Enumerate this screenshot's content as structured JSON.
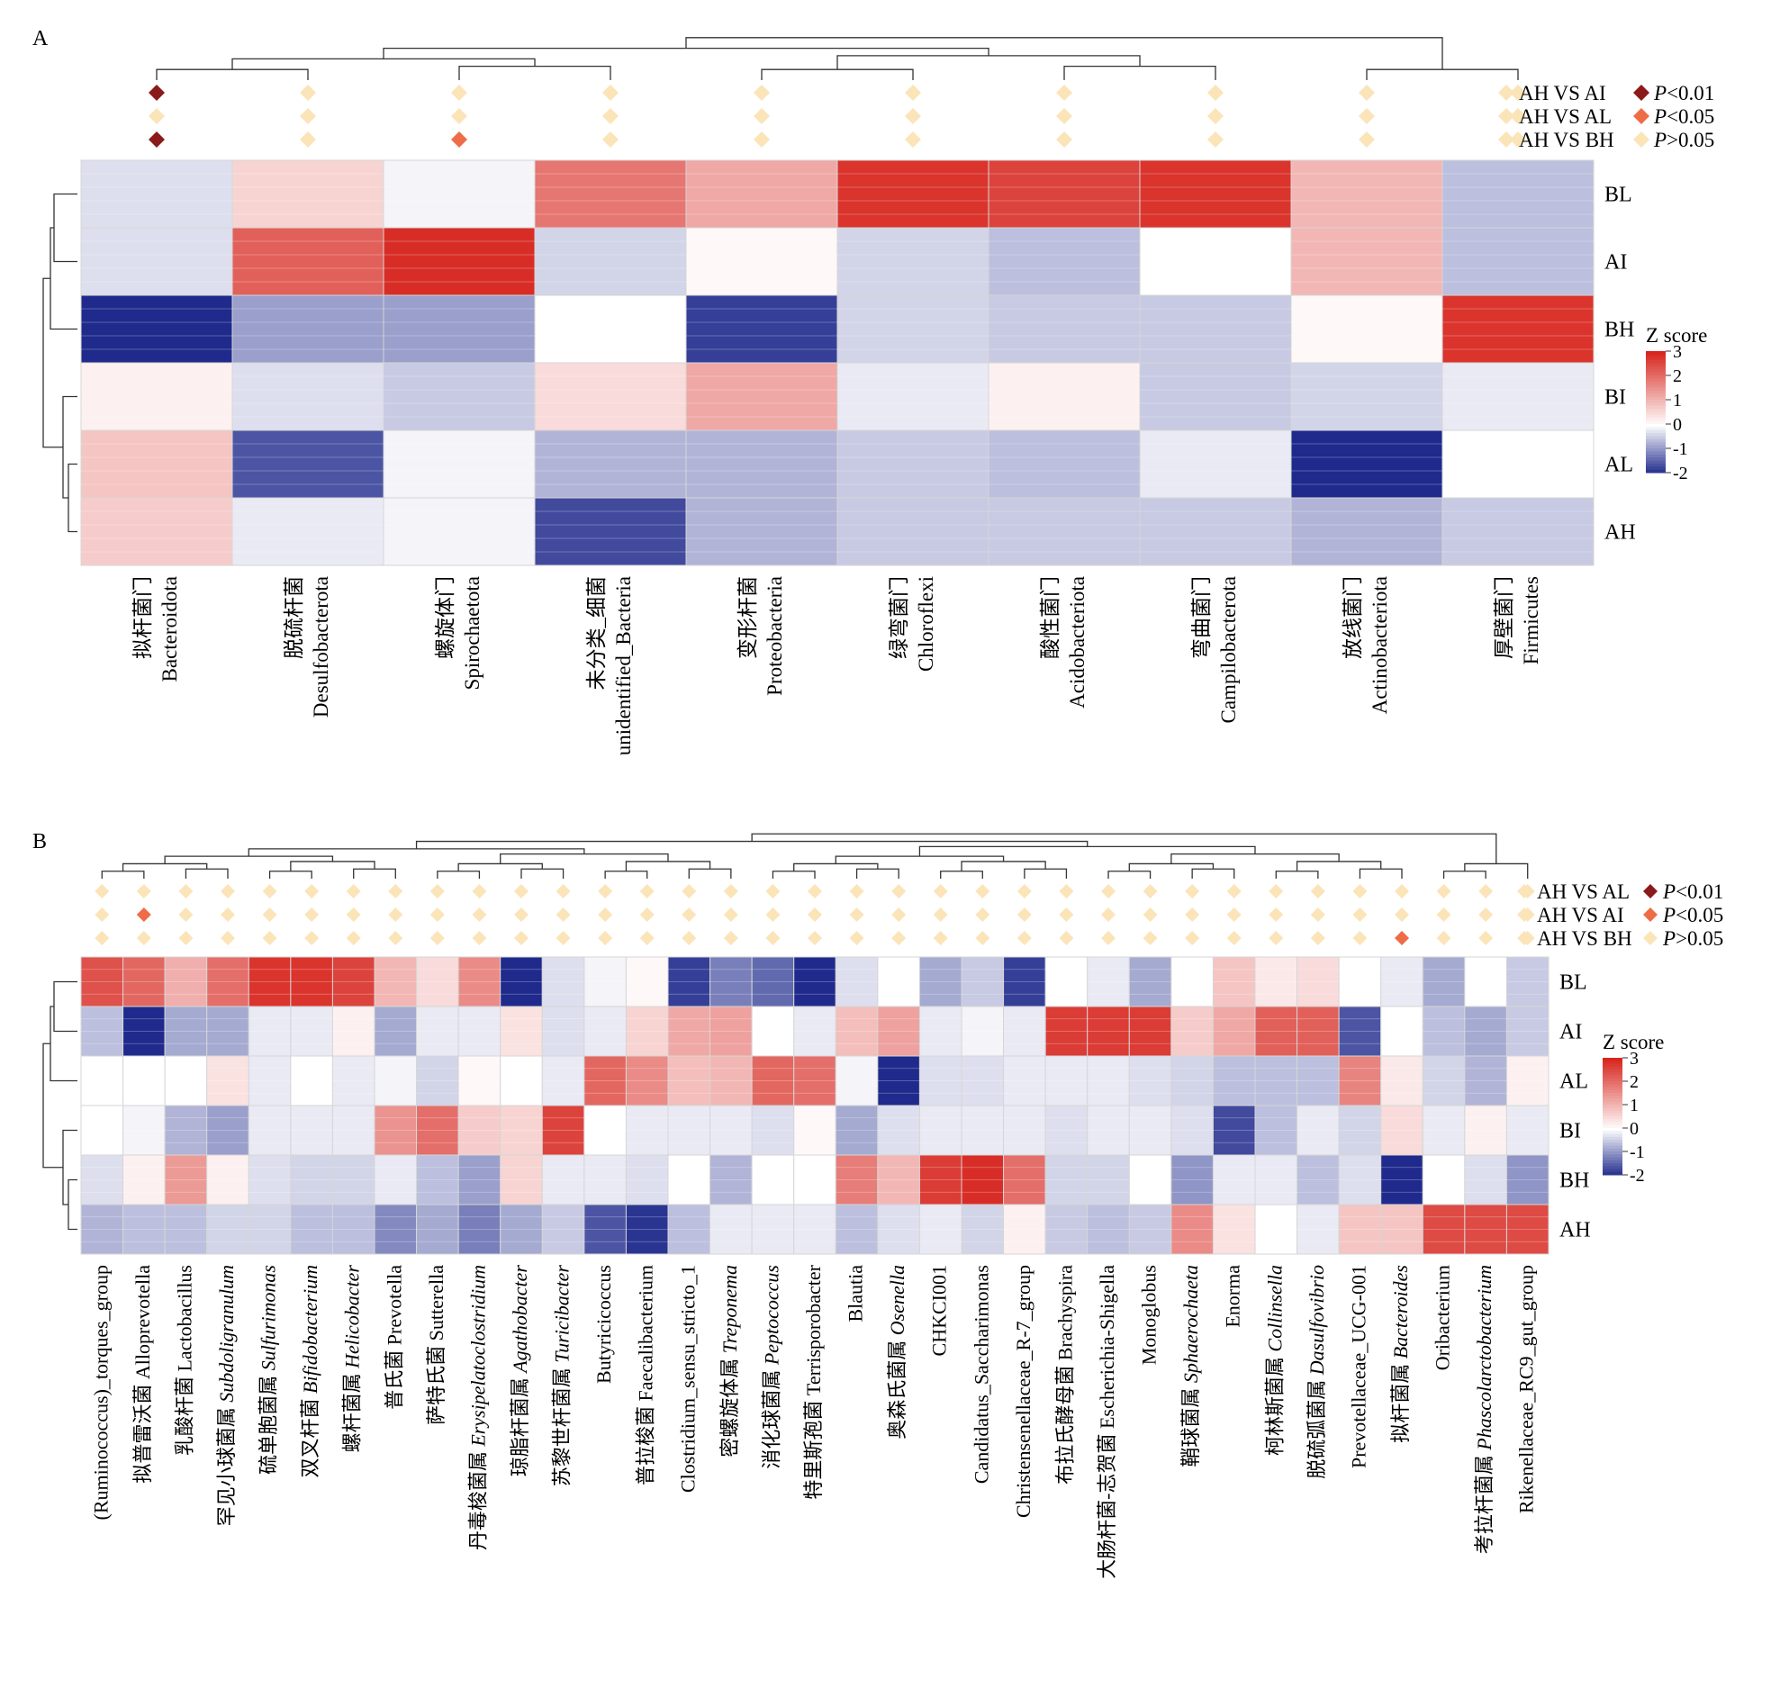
{
  "panel_letters": [
    "A",
    "B"
  ],
  "colors": {
    "low": "#1f2a8c",
    "mid": "#ffffff",
    "high": "#d7261e",
    "p001": "#8b1a1a",
    "p005": "#ee6d47",
    "pns": "#fbe4b8"
  },
  "chart_data": [
    {
      "panel": "A",
      "type": "heatmap",
      "rows": [
        "BL",
        "AI",
        "BH",
        "BI",
        "AL",
        "AH"
      ],
      "columns": [
        {
          "cn": "拟杆菌门",
          "en": "Bacteroidota"
        },
        {
          "cn": "脱硫杆菌",
          "en": "Desulfobacterota"
        },
        {
          "cn": "螺旋体门",
          "en": "Spirochaetota"
        },
        {
          "cn": "未分类_细菌",
          "en": "unidentified_Bacteria"
        },
        {
          "cn": "变形杆菌",
          "en": "Proteobacteria"
        },
        {
          "cn": "绿弯菌门",
          "en": "Chloroflexi"
        },
        {
          "cn": "酸性菌门",
          "en": "Acidobacteriota"
        },
        {
          "cn": "弯曲菌门",
          "en": "Campilobacterota"
        },
        {
          "cn": "放线菌门",
          "en": "Actinobacteriota"
        },
        {
          "cn": "厚壁菌门",
          "en": "Firmicutes"
        }
      ],
      "values": [
        [
          -0.3,
          0.6,
          -0.1,
          1.9,
          1.2,
          2.8,
          2.6,
          2.8,
          1.0,
          -0.6
        ],
        [
          -0.3,
          2.2,
          2.9,
          -0.4,
          0.1,
          -0.4,
          -0.6,
          0.0,
          1.0,
          -0.6
        ],
        [
          -2.0,
          -0.9,
          -0.9,
          0.0,
          -1.8,
          -0.4,
          -0.5,
          -0.5,
          0.1,
          2.8
        ],
        [
          0.2,
          -0.3,
          -0.5,
          0.5,
          1.2,
          -0.2,
          0.2,
          -0.5,
          -0.4,
          -0.2
        ],
        [
          0.8,
          -1.6,
          -0.1,
          -0.7,
          -0.7,
          -0.5,
          -0.6,
          -0.2,
          -2.0,
          0.0
        ],
        [
          0.7,
          -0.2,
          -0.1,
          -1.7,
          -0.7,
          -0.5,
          -0.5,
          -0.5,
          -0.7,
          -0.5
        ]
      ],
      "comparisons": [
        "AH VS AI",
        "AH VS AL",
        "AH VS BH"
      ],
      "significance": [
        [
          "p001",
          "ns",
          "ns",
          "ns",
          "ns",
          "ns",
          "ns",
          "ns",
          "ns",
          "ns"
        ],
        [
          "ns",
          "ns",
          "ns",
          "ns",
          "ns",
          "ns",
          "ns",
          "ns",
          "ns",
          "ns"
        ],
        [
          "p001",
          "ns",
          "p005",
          "ns",
          "ns",
          "ns",
          "ns",
          "ns",
          "ns",
          "ns"
        ]
      ],
      "legend_p": [
        "P<0.01",
        "P<0.05",
        "P>0.05"
      ],
      "legend_title": "Z score",
      "legend_ticks": [
        "3",
        "2",
        "1",
        "0",
        "-1",
        "-2"
      ]
    },
    {
      "panel": "B",
      "type": "heatmap",
      "rows": [
        "BL",
        "AI",
        "AL",
        "BI",
        "BH",
        "AH"
      ],
      "columns": [
        {
          "cn": "",
          "en": "(Ruminococcus)_torques_group",
          "italic": false
        },
        {
          "cn": "拟普雷沃菌",
          "en": "Alloprevotella",
          "italic": false
        },
        {
          "cn": "乳酸杆菌",
          "en": "Lactobacillus",
          "italic": false
        },
        {
          "cn": "罕见小球菌属",
          "en": "Subdoligranulum",
          "italic": true
        },
        {
          "cn": "硫单胞菌属",
          "en": "Sulfurimonas",
          "italic": true
        },
        {
          "cn": "双叉杆菌",
          "en": "Bifidobacterium",
          "italic": true
        },
        {
          "cn": "螺杆菌属",
          "en": "Helicobacter",
          "italic": true
        },
        {
          "cn": "普氏菌",
          "en": "Prevotella",
          "italic": false
        },
        {
          "cn": "萨特氏菌",
          "en": "Sutterella",
          "italic": false
        },
        {
          "cn": "丹毒梭菌属",
          "en": "Erysipelatoclostridium",
          "italic": true
        },
        {
          "cn": "琼脂杆菌属",
          "en": "Agathobacter",
          "italic": true
        },
        {
          "cn": "苏黎世杆菌属",
          "en": "Turicibacter",
          "italic": true
        },
        {
          "cn": "",
          "en": "Butyricicoccus",
          "italic": false
        },
        {
          "cn": "普拉梭菌",
          "en": "Faecalibacterium",
          "italic": false
        },
        {
          "cn": "",
          "en": "Clostridium_sensu_stricto_1",
          "italic": false
        },
        {
          "cn": "密螺旋体属",
          "en": "Treponema",
          "italic": true
        },
        {
          "cn": "消化球菌属",
          "en": "Peptococcus",
          "italic": true
        },
        {
          "cn": "特里斯孢菌",
          "en": "Terrisporobacter",
          "italic": false
        },
        {
          "cn": "",
          "en": "Blautia",
          "italic": false
        },
        {
          "cn": "奥森氏菌属",
          "en": "Osenella",
          "italic": true
        },
        {
          "cn": "",
          "en": "CHKCI001",
          "italic": false
        },
        {
          "cn": "",
          "en": "Candidatus_Saccharimonas",
          "italic": false
        },
        {
          "cn": "",
          "en": "Christensenellaceae_R-7_group",
          "italic": false
        },
        {
          "cn": "布拉氏酵母菌",
          "en": "Brachyspira",
          "italic": false
        },
        {
          "cn": "大肠杆菌-志贺菌",
          "en": "Escherichia-Shigella",
          "italic": false
        },
        {
          "cn": "",
          "en": "Monoglobus",
          "italic": false
        },
        {
          "cn": "鞘球菌属",
          "en": "Sphaerochaeta",
          "italic": true
        },
        {
          "cn": "",
          "en": "Enorma",
          "italic": false
        },
        {
          "cn": "柯林斯菌属",
          "en": "Collinsella",
          "italic": true
        },
        {
          "cn": "脱硫弧菌属",
          "en": "Dasulfovibrio",
          "italic": true
        },
        {
          "cn": "",
          "en": "Prevotellaceae_UCG-001",
          "italic": false
        },
        {
          "cn": "拟杆菌属",
          "en": "Bacteroides",
          "italic": true
        },
        {
          "cn": "",
          "en": "Oribacterium",
          "italic": false
        },
        {
          "cn": "考拉杆菌属",
          "en": "Phascolarctobacterium",
          "italic": true
        },
        {
          "cn": "",
          "en": "Rikenellaceae_RC9_gut_group",
          "italic": false
        }
      ],
      "values": [
        [
          2.4,
          2.1,
          1.1,
          2.0,
          2.8,
          2.8,
          2.6,
          1.0,
          0.5,
          1.6,
          -2.0,
          -0.3,
          -0.1,
          0.1,
          -1.8,
          -1.2,
          -1.4,
          -2.0,
          -0.3,
          0.0,
          -0.8,
          -0.5,
          -1.8,
          0.0,
          -0.2,
          -0.8,
          0.0,
          0.8,
          0.3,
          0.5,
          0.0,
          -0.2,
          -0.8,
          0.0,
          -0.5
        ],
        [
          -0.6,
          -2.0,
          -0.8,
          -0.8,
          -0.2,
          -0.2,
          0.2,
          -0.8,
          -0.2,
          -0.2,
          0.4,
          -0.3,
          -0.2,
          0.6,
          1.2,
          1.3,
          0.0,
          -0.2,
          0.9,
          1.3,
          -0.2,
          -0.1,
          -0.2,
          2.7,
          2.7,
          2.7,
          0.7,
          1.2,
          2.2,
          2.2,
          -1.6,
          0.0,
          -0.6,
          -0.8,
          -0.5
        ],
        [
          0.0,
          0.0,
          0.0,
          0.4,
          -0.2,
          0.0,
          -0.2,
          -0.1,
          -0.4,
          0.1,
          0.0,
          -0.2,
          2.1,
          1.6,
          0.9,
          1.0,
          2.1,
          2.0,
          -0.1,
          -2.0,
          -0.3,
          -0.3,
          -0.2,
          -0.2,
          -0.2,
          -0.3,
          -0.4,
          -0.6,
          -0.6,
          -0.6,
          1.7,
          0.3,
          -0.4,
          -0.7,
          0.2
        ],
        [
          0.0,
          -0.1,
          -0.7,
          -0.9,
          -0.2,
          -0.2,
          -0.2,
          1.5,
          2.0,
          0.7,
          0.6,
          2.6,
          0.0,
          -0.2,
          -0.2,
          -0.2,
          -0.3,
          0.1,
          -0.8,
          -0.3,
          -0.2,
          -0.2,
          -0.2,
          -0.3,
          -0.2,
          -0.2,
          -0.3,
          -1.7,
          -0.6,
          -0.2,
          -0.4,
          0.5,
          -0.2,
          0.2,
          -0.2
        ],
        [
          -0.3,
          0.2,
          1.4,
          0.2,
          -0.3,
          -0.4,
          -0.4,
          -0.2,
          -0.6,
          -0.9,
          0.6,
          -0.2,
          -0.2,
          -0.3,
          0.0,
          -0.7,
          0.0,
          0.0,
          1.8,
          1.0,
          2.7,
          2.9,
          2.0,
          -0.4,
          -0.4,
          0.0,
          -1.0,
          -0.2,
          -0.2,
          -0.6,
          -0.3,
          -2.0,
          0.0,
          -0.3,
          -1.0
        ],
        [
          -0.7,
          -0.6,
          -0.6,
          -0.4,
          -0.4,
          -0.6,
          -0.6,
          -1.1,
          -0.8,
          -1.2,
          -0.8,
          -0.5,
          -1.6,
          -1.9,
          -0.6,
          -0.2,
          -0.2,
          -0.2,
          -0.6,
          -0.3,
          -0.2,
          -0.4,
          0.2,
          -0.5,
          -0.6,
          -0.5,
          1.6,
          0.4,
          0.0,
          -0.2,
          0.8,
          0.8,
          2.5,
          2.5,
          2.5
        ]
      ],
      "comparisons": [
        "AH VS AL",
        "AH VS AI",
        "AH VS BH"
      ],
      "significance": [
        [
          "ns",
          "ns",
          "ns",
          "ns",
          "ns",
          "ns",
          "ns",
          "ns",
          "ns",
          "ns",
          "ns",
          "ns",
          "ns",
          "ns",
          "ns",
          "ns",
          "ns",
          "ns",
          "ns",
          "ns",
          "ns",
          "ns",
          "ns",
          "ns",
          "ns",
          "ns",
          "ns",
          "ns",
          "ns",
          "ns",
          "ns",
          "ns",
          "ns",
          "ns",
          "ns"
        ],
        [
          "ns",
          "p005",
          "ns",
          "ns",
          "ns",
          "ns",
          "ns",
          "ns",
          "ns",
          "ns",
          "ns",
          "ns",
          "ns",
          "ns",
          "ns",
          "ns",
          "ns",
          "ns",
          "ns",
          "ns",
          "ns",
          "ns",
          "ns",
          "ns",
          "ns",
          "ns",
          "ns",
          "ns",
          "ns",
          "ns",
          "ns",
          "ns",
          "ns",
          "ns",
          "ns"
        ],
        [
          "ns",
          "ns",
          "ns",
          "ns",
          "ns",
          "ns",
          "ns",
          "ns",
          "ns",
          "ns",
          "ns",
          "ns",
          "ns",
          "ns",
          "ns",
          "ns",
          "ns",
          "ns",
          "ns",
          "ns",
          "ns",
          "ns",
          "ns",
          "ns",
          "ns",
          "ns",
          "ns",
          "ns",
          "ns",
          "ns",
          "ns",
          "p005",
          "ns",
          "ns",
          "ns"
        ]
      ],
      "legend_p": [
        "P<0.01",
        "P<0.05",
        "P>0.05"
      ],
      "legend_title": "Z score",
      "legend_ticks": [
        "3",
        "2",
        "1",
        "0",
        "-1",
        "-2"
      ]
    }
  ]
}
